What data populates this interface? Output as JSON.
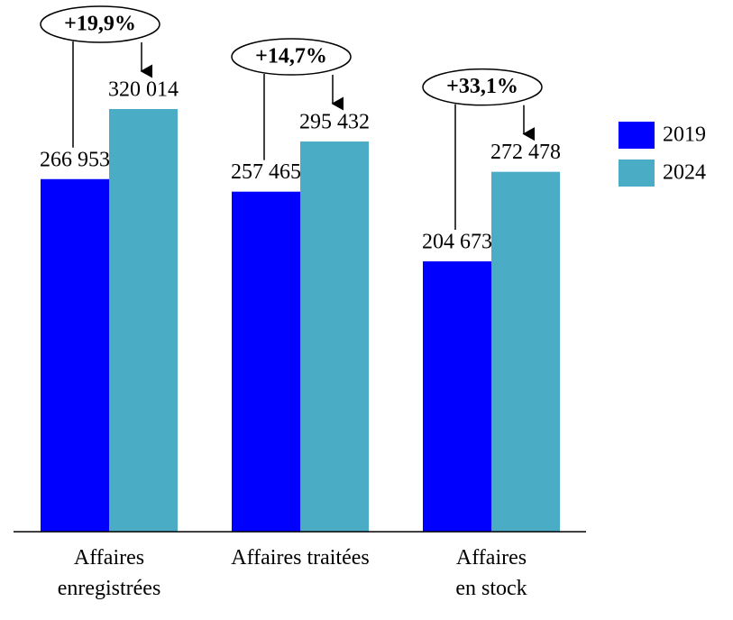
{
  "chart_data": {
    "type": "bar",
    "categories": [
      "Affaires\nenregistrées",
      "Affaires traitées",
      "Affaires\nen stock"
    ],
    "series": [
      {
        "name": "2019",
        "color": "#0000ff",
        "values": [
          266953,
          257465,
          204673
        ],
        "value_labels": [
          "266 953",
          "257 465",
          "204 673"
        ]
      },
      {
        "name": "2024",
        "color": "#4bacc6",
        "values": [
          320014,
          295432,
          272478
        ],
        "value_labels": [
          "320 014",
          "295 432",
          "272 478"
        ]
      }
    ],
    "annotations": [
      "+19,9%",
      "+14,7%",
      "+33,1%"
    ]
  }
}
